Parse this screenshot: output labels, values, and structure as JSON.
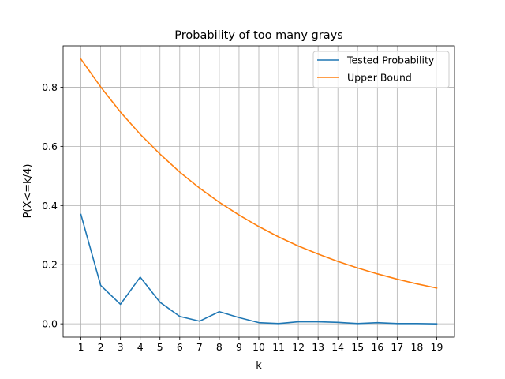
{
  "chart_data": {
    "type": "line",
    "title": "Probability of too many grays",
    "xlabel": "k",
    "ylabel": "P(X<=k/4)",
    "x": [
      1,
      2,
      3,
      4,
      5,
      6,
      7,
      8,
      9,
      10,
      11,
      12,
      13,
      14,
      15,
      16,
      17,
      18,
      19
    ],
    "xticks": [
      "1",
      "2",
      "3",
      "4",
      "5",
      "6",
      "7",
      "8",
      "9",
      "10",
      "11",
      "12",
      "13",
      "14",
      "15",
      "16",
      "17",
      "18",
      "19"
    ],
    "yticks": [
      "0.0",
      "0.2",
      "0.4",
      "0.6",
      "0.8"
    ],
    "ytick_values": [
      0.0,
      0.2,
      0.4,
      0.6,
      0.8
    ],
    "xlim": [
      0.1,
      19.9
    ],
    "ylim": [
      -0.045,
      0.94
    ],
    "grid": true,
    "legend_position": "top-right",
    "series": [
      {
        "name": "Tested Probability",
        "color": "#1f77b4",
        "values": [
          0.37,
          0.13,
          0.066,
          0.158,
          0.073,
          0.025,
          0.009,
          0.041,
          0.021,
          0.004,
          0.001,
          0.007,
          0.007,
          0.005,
          0.001,
          0.004,
          0.001,
          0.001,
          0.0
        ]
      },
      {
        "name": "Upper Bound",
        "color": "#ff7f0e",
        "values": [
          0.895,
          0.801,
          0.716,
          0.641,
          0.574,
          0.513,
          0.459,
          0.411,
          0.368,
          0.329,
          0.294,
          0.263,
          0.236,
          0.211,
          0.189,
          0.169,
          0.151,
          0.135,
          0.121
        ]
      }
    ]
  }
}
